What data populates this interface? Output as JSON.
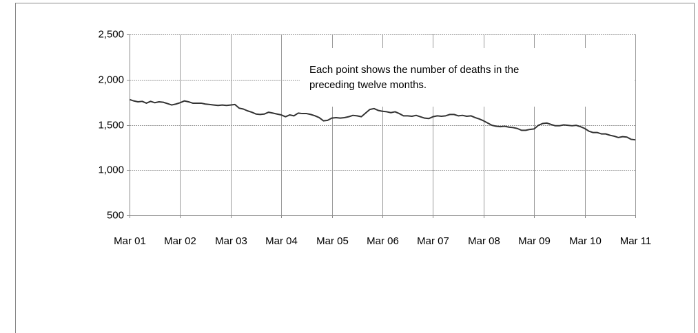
{
  "chart_data": {
    "type": "line",
    "annotation": [
      "Each point shows the number of deaths in the",
      "preceding twelve months."
    ],
    "categories": [
      "Mar 01",
      null,
      null,
      null,
      null,
      null,
      null,
      null,
      null,
      null,
      null,
      null,
      "Mar 02",
      null,
      null,
      null,
      null,
      null,
      null,
      null,
      null,
      null,
      null,
      null,
      "Mar 03",
      null,
      null,
      null,
      null,
      null,
      null,
      null,
      null,
      null,
      null,
      null,
      "Mar 04",
      null,
      null,
      null,
      null,
      null,
      null,
      null,
      null,
      null,
      null,
      null,
      "Mar 05",
      null,
      null,
      null,
      null,
      null,
      null,
      null,
      null,
      null,
      null,
      null,
      "Mar 06",
      null,
      null,
      null,
      null,
      null,
      null,
      null,
      null,
      null,
      null,
      null,
      "Mar 07",
      null,
      null,
      null,
      null,
      null,
      null,
      null,
      null,
      null,
      null,
      null,
      "Mar 08",
      null,
      null,
      null,
      null,
      null,
      null,
      null,
      null,
      null,
      null,
      null,
      "Mar 09",
      null,
      null,
      null,
      null,
      null,
      null,
      null,
      null,
      null,
      null,
      null,
      "Mar 10",
      null,
      null,
      null,
      null,
      null,
      null,
      null,
      null,
      null,
      null,
      null,
      "Mar 11"
    ],
    "values": [
      1780,
      1765,
      1755,
      1760,
      1740,
      1760,
      1745,
      1755,
      1750,
      1735,
      1720,
      1730,
      1745,
      1765,
      1755,
      1740,
      1740,
      1740,
      1730,
      1725,
      1720,
      1715,
      1720,
      1715,
      1720,
      1725,
      1685,
      1675,
      1655,
      1640,
      1620,
      1615,
      1620,
      1640,
      1630,
      1620,
      1610,
      1590,
      1610,
      1600,
      1630,
      1625,
      1625,
      1615,
      1600,
      1580,
      1545,
      1550,
      1575,
      1580,
      1575,
      1580,
      1590,
      1605,
      1600,
      1590,
      1630,
      1670,
      1680,
      1660,
      1650,
      1645,
      1635,
      1645,
      1625,
      1600,
      1600,
      1595,
      1605,
      1590,
      1575,
      1570,
      1590,
      1600,
      1595,
      1600,
      1615,
      1615,
      1600,
      1605,
      1595,
      1600,
      1580,
      1565,
      1545,
      1520,
      1495,
      1485,
      1480,
      1485,
      1475,
      1470,
      1460,
      1440,
      1440,
      1450,
      1455,
      1495,
      1515,
      1520,
      1505,
      1490,
      1490,
      1500,
      1495,
      1490,
      1495,
      1480,
      1460,
      1430,
      1415,
      1415,
      1400,
      1400,
      1385,
      1375,
      1360,
      1370,
      1365,
      1340,
      1335
    ],
    "color": "#333333",
    "ylim": [
      500,
      2500
    ],
    "yticks": [
      500,
      {
        "value": 1000,
        "label": "1,000"
      },
      {
        "value": 1500,
        "label": "1,500"
      },
      {
        "value": 2000,
        "label": "2,000"
      },
      {
        "value": 2500,
        "label": "2,500"
      }
    ],
    "grid": true
  }
}
